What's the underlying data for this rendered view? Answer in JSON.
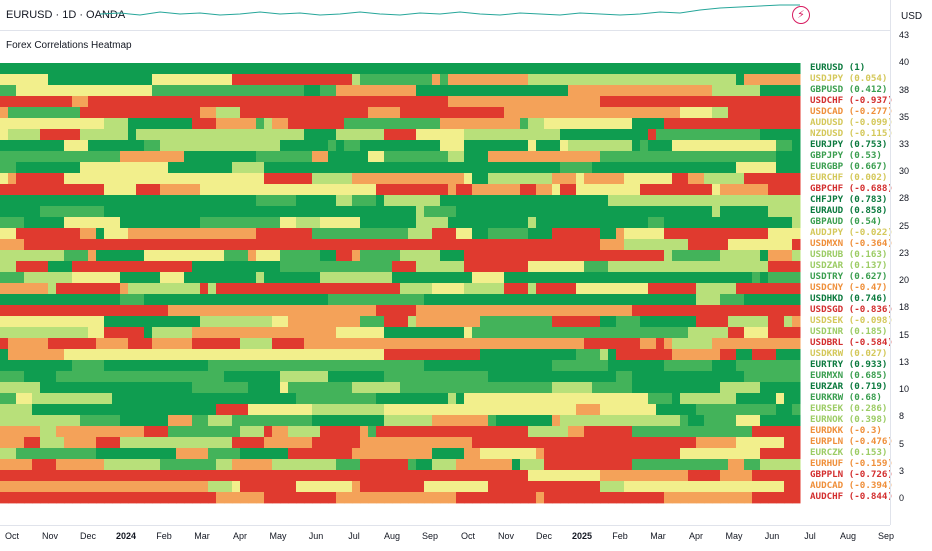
{
  "header": {
    "symbol_title": "EURUSD · 1D · OANDA",
    "currency": "USD"
  },
  "indicator": {
    "title": "Forex Correlations Heatmap"
  },
  "colors": {
    "dark_green": "#0f9d50",
    "green": "#43b35a",
    "light_green": "#b8e07a",
    "yellow": "#f2ef8c",
    "orange": "#f4a259",
    "red": "#e03a2f",
    "mini_line": "#26a69a"
  },
  "chart_data": {
    "type": "heatmap",
    "pairs": [
      {
        "label": "EURUSD (1)",
        "corr": 1
      },
      {
        "label": "USDJPY (0.054)",
        "corr": 0.054
      },
      {
        "label": "GBPUSD (0.412)",
        "corr": 0.412
      },
      {
        "label": "USDCHF (-0.937)",
        "corr": -0.937
      },
      {
        "label": "USDCAD (-0.277)",
        "corr": -0.277
      },
      {
        "label": "AUDUSD (-0.099)",
        "corr": -0.099
      },
      {
        "label": "NZDUSD (-0.115)",
        "corr": -0.115
      },
      {
        "label": "EURJPY (0.753)",
        "corr": 0.753
      },
      {
        "label": "GBPJPY (0.53)",
        "corr": 0.53
      },
      {
        "label": "EURGBP (0.667)",
        "corr": 0.667
      },
      {
        "label": "EURCHF (0.002)",
        "corr": 0.002
      },
      {
        "label": "GBPCHF (-0.688)",
        "corr": -0.688
      },
      {
        "label": "CHFJPY (0.783)",
        "corr": 0.783
      },
      {
        "label": "EURAUD (0.858)",
        "corr": 0.858
      },
      {
        "label": "GBPAUD (0.54)",
        "corr": 0.54
      },
      {
        "label": "AUDJPY (-0.022)",
        "corr": -0.022
      },
      {
        "label": "USDMXN (-0.364)",
        "corr": -0.364
      },
      {
        "label": "USDRUB (0.163)",
        "corr": 0.163
      },
      {
        "label": "USDZAR (0.137)",
        "corr": 0.137
      },
      {
        "label": "USDTRY (0.627)",
        "corr": 0.627
      },
      {
        "label": "USDCNY (-0.47)",
        "corr": -0.47
      },
      {
        "label": "USDHKD (0.746)",
        "corr": 0.746
      },
      {
        "label": "USDSGD (-0.836)",
        "corr": -0.836
      },
      {
        "label": "USDSEK (-0.098)",
        "corr": -0.098
      },
      {
        "label": "USDINR (0.185)",
        "corr": 0.185
      },
      {
        "label": "USDBRL (-0.584)",
        "corr": -0.584
      },
      {
        "label": "USDKRW (0.027)",
        "corr": 0.027
      },
      {
        "label": "EURTRY (0.933)",
        "corr": 0.933
      },
      {
        "label": "EURMXN (0.685)",
        "corr": 0.685
      },
      {
        "label": "EURZAR (0.719)",
        "corr": 0.719
      },
      {
        "label": "EURKRW (0.68)",
        "corr": 0.68
      },
      {
        "label": "EURSEK (0.286)",
        "corr": 0.286
      },
      {
        "label": "EURNOK (0.398)",
        "corr": 0.398
      },
      {
        "label": "EURDKK (-0.3)",
        "corr": -0.3
      },
      {
        "label": "EURPLN (-0.476)",
        "corr": -0.476
      },
      {
        "label": "EURCZK (0.153)",
        "corr": 0.153
      },
      {
        "label": "EURHUF (-0.159)",
        "corr": -0.159
      },
      {
        "label": "GBPPLN (-0.726)",
        "corr": -0.726
      },
      {
        "label": "AUDCAD (-0.394)",
        "corr": -0.394
      },
      {
        "label": "AUDCHF (-0.844)",
        "corr": -0.844
      }
    ],
    "yticks": [
      "43",
      "40",
      "38",
      "35",
      "33",
      "30",
      "28",
      "25",
      "23",
      "20",
      "18",
      "15",
      "13",
      "10",
      "8",
      "5",
      "3",
      "0"
    ],
    "xticks": [
      {
        "label": "Oct",
        "bold": false
      },
      {
        "label": "Nov",
        "bold": false
      },
      {
        "label": "Dec",
        "bold": false
      },
      {
        "label": "2024",
        "bold": true
      },
      {
        "label": "Feb",
        "bold": false
      },
      {
        "label": "Mar",
        "bold": false
      },
      {
        "label": "Apr",
        "bold": false
      },
      {
        "label": "May",
        "bold": false
      },
      {
        "label": "Jun",
        "bold": false
      },
      {
        "label": "Jul",
        "bold": false
      },
      {
        "label": "Aug",
        "bold": false
      },
      {
        "label": "Sep",
        "bold": false
      },
      {
        "label": "Oct",
        "bold": false
      },
      {
        "label": "Nov",
        "bold": false
      },
      {
        "label": "Dec",
        "bold": false
      },
      {
        "label": "2025",
        "bold": true
      },
      {
        "label": "Feb",
        "bold": false
      },
      {
        "label": "Mar",
        "bold": false
      },
      {
        "label": "Apr",
        "bold": false
      },
      {
        "label": "May",
        "bold": false
      },
      {
        "label": "Jun",
        "bold": false
      },
      {
        "label": "Jul",
        "bold": false
      },
      {
        "label": "Aug",
        "bold": false
      },
      {
        "label": "Sep",
        "bold": false
      }
    ]
  }
}
